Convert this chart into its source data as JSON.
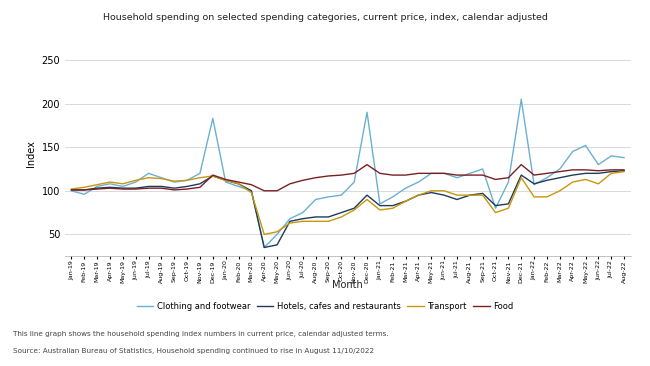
{
  "title": "Household spending on selected spending categories, current price, index, calendar adjusted",
  "xlabel": "Month",
  "ylabel": "Index",
  "ylim": [
    25,
    260
  ],
  "yticks": [
    50,
    100,
    150,
    200,
    250
  ],
  "caption1": "This line graph shows the household spending index numbers in current price, calendar adjusted terms.",
  "caption2": "Source: Australian Bureau of Statistics, Household spending continued to rise in August 11/10/2022",
  "months": [
    "Jan-19",
    "Feb-19",
    "Mar-19",
    "Apr-19",
    "May-19",
    "Jun-19",
    "Jul-19",
    "Aug-19",
    "Sep-19",
    "Oct-19",
    "Nov-19",
    "Dec-19",
    "Jan-20",
    "Feb-20",
    "Mar-20",
    "Apr-20",
    "May-20",
    "Jun-20",
    "Jul-20",
    "Aug-20",
    "Sep-20",
    "Oct-20",
    "Nov-20",
    "Dec-20",
    "Jan-21",
    "Feb-21",
    "Mar-21",
    "Apr-21",
    "May-21",
    "Jun-21",
    "Jul-21",
    "Aug-21",
    "Sep-21",
    "Oct-21",
    "Nov-21",
    "Dec-21",
    "Jan-22",
    "Feb-22",
    "Mar-22",
    "Apr-22",
    "May-22",
    "Jun-22",
    "Jul-22",
    "Aug-22"
  ],
  "clothing_footwear": [
    100,
    96,
    105,
    108,
    105,
    110,
    120,
    115,
    110,
    112,
    120,
    183,
    110,
    105,
    100,
    35,
    50,
    68,
    75,
    90,
    93,
    95,
    110,
    190,
    85,
    93,
    103,
    110,
    120,
    120,
    115,
    120,
    125,
    80,
    110,
    205,
    107,
    115,
    125,
    145,
    152,
    130,
    140,
    138
  ],
  "hotels_cafes": [
    101,
    101,
    103,
    104,
    103,
    103,
    105,
    105,
    103,
    105,
    108,
    117,
    112,
    108,
    100,
    35,
    38,
    65,
    68,
    70,
    70,
    75,
    80,
    95,
    83,
    83,
    88,
    95,
    98,
    95,
    90,
    95,
    97,
    83,
    85,
    118,
    108,
    112,
    115,
    118,
    120,
    120,
    122,
    123
  ],
  "transport": [
    102,
    104,
    107,
    110,
    108,
    112,
    115,
    114,
    111,
    112,
    115,
    117,
    112,
    108,
    98,
    50,
    53,
    63,
    65,
    65,
    65,
    70,
    78,
    90,
    78,
    80,
    88,
    95,
    100,
    100,
    95,
    95,
    95,
    75,
    80,
    115,
    93,
    93,
    100,
    110,
    113,
    108,
    120,
    122
  ],
  "food": [
    101,
    101,
    102,
    103,
    102,
    102,
    103,
    103,
    101,
    102,
    104,
    118,
    113,
    110,
    107,
    100,
    100,
    108,
    112,
    115,
    117,
    118,
    120,
    130,
    120,
    118,
    118,
    120,
    120,
    120,
    118,
    118,
    118,
    113,
    115,
    130,
    118,
    120,
    122,
    124,
    124,
    123,
    124,
    124
  ],
  "clothing_color": "#6ab0d4",
  "hotels_color": "#1e3a5f",
  "transport_color": "#c8960c",
  "food_color": "#7b2020",
  "legend_labels": [
    "Clothing and footwear",
    "Hotels, cafes and restaurants",
    "Transport",
    "Food"
  ],
  "bg_color": "#ffffff",
  "grid_color": "#cccccc"
}
